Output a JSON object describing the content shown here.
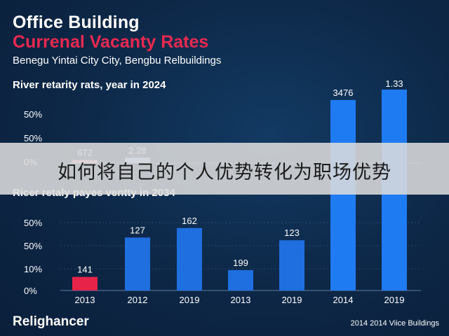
{
  "header": {
    "title": "Office Building",
    "subtitle": "Currenal Vacanty Rates",
    "location": "Benegu Yintai City City, Bengbu Relbuildings"
  },
  "section_labels": {
    "top": "River retarity rats, year in 2024",
    "bottom": "Ricer retaly payes ventty in 2034"
  },
  "overlay_banner": "如何将自己的个人优势转化为职场优势",
  "brand": "Relighancer",
  "footer": "2014 2014 Viice Buildings",
  "chart_data": [
    {
      "type": "bar",
      "title": "River retarity rats, year in 2024",
      "yticks": [
        "50%",
        "50%",
        "0%"
      ],
      "categories": [
        "2013",
        "2012",
        "2019",
        "2013",
        "2019",
        "2014",
        "2019"
      ],
      "values": [
        10,
        18,
        0,
        0,
        0,
        210,
        240
      ],
      "data_labels": [
        "672",
        "2.28",
        "",
        "",
        "",
        "3476",
        "1.33"
      ],
      "colors": [
        "#ff9db0",
        "#9fc6f5",
        "#1f6fe0",
        "#1f6fe0",
        "#1f6fe0",
        "#1f7bf2",
        "#1f7bf2"
      ]
    },
    {
      "type": "bar",
      "title": "Ricer retaly payes ventty in 2034",
      "yticks": [
        "50%",
        "50%",
        "10%",
        "0%"
      ],
      "ylim": [
        0,
        100
      ],
      "categories": [
        "2013",
        "2012",
        "2019",
        "2013",
        "2019",
        "2014",
        "2019"
      ],
      "values": [
        20,
        78,
        92,
        30,
        74,
        100,
        100
      ],
      "data_labels": [
        "141",
        "127",
        "162",
        "199",
        "123",
        "",
        ""
      ],
      "colors": [
        "#e8234a",
        "#1f6fe0",
        "#1f6fe0",
        "#1f6fe0",
        "#1f6fe0",
        "#1f7bf2",
        "#1f7bf2"
      ],
      "grid": true
    }
  ]
}
